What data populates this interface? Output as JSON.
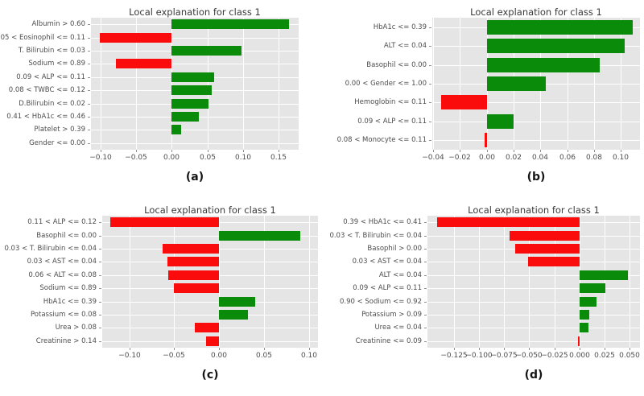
{
  "figure": {
    "background": "#ffffff",
    "panel_background": "#e5e5e5",
    "gridline_color": "#ffffff",
    "tick_color": "#8f8f8f",
    "positive_color": "#0a8c0a",
    "negative_color": "#fb0c0c"
  },
  "chart_data": [
    {
      "type": "bar",
      "orientation": "horizontal",
      "title": "Local explanation for class 1",
      "caption": "(a)",
      "legend": "none",
      "grid": true,
      "categories": [
        "Albumin > 0.60",
        "0.05 < Eosinophil <= 0.11",
        "T. Bilirubin <= 0.03",
        "Sodium <= 0.89",
        "0.09 < ALP <= 0.11",
        "0.08 < TWBC <= 0.12",
        "D.Bilirubin <= 0.02",
        "0.41 < HbA1c <= 0.46",
        "Platelet > 0.39",
        "Gender <= 0.00"
      ],
      "values": [
        0.165,
        -0.1,
        0.098,
        -0.078,
        0.06,
        0.057,
        0.052,
        0.038,
        0.013,
        0.0
      ],
      "xlim": [
        -0.1133,
        0.178
      ],
      "xticks": [
        -0.1,
        -0.05,
        0.0,
        0.05,
        0.1,
        0.15
      ],
      "xtick_labels": [
        "−0.10",
        "−0.05",
        "0.00",
        "0.05",
        "0.10",
        "0.15"
      ]
    },
    {
      "type": "bar",
      "orientation": "horizontal",
      "title": "Local explanation for class 1",
      "caption": "(b)",
      "legend": "none",
      "grid": true,
      "categories": [
        "HbA1c <= 0.39",
        "ALT <= 0.04",
        "Basophil <= 0.00",
        "0.00 < Gender <= 1.00",
        "Hemoglobin <= 0.11",
        "0.09 < ALP <= 0.11",
        "0.08 < Monocyte <= 0.11"
      ],
      "values": [
        0.109,
        0.103,
        0.084,
        0.044,
        -0.034,
        0.02,
        -0.002
      ],
      "xlim": [
        -0.0407,
        0.1143
      ],
      "xticks": [
        -0.04,
        -0.02,
        0.0,
        0.02,
        0.04,
        0.06,
        0.08,
        0.1
      ],
      "xtick_labels": [
        "−0.04",
        "−0.02",
        "0.00",
        "0.02",
        "0.04",
        "0.06",
        "0.08",
        "0.10"
      ]
    },
    {
      "type": "bar",
      "orientation": "horizontal",
      "title": "Local explanation for class 1",
      "caption": "(c)",
      "legend": "none",
      "grid": true,
      "categories": [
        "0.11 < ALP <= 0.12",
        "Basophil <= 0.00",
        "0.03 < T. Bilirubin <= 0.04",
        "0.03 < AST <= 0.04",
        "0.06 < ALT <= 0.08",
        "Sodium <= 0.89",
        "HbA1c <= 0.39",
        "Potassium <= 0.08",
        "Urea > 0.08",
        "Creatinine > 0.14"
      ],
      "values": [
        -0.121,
        0.09,
        -0.063,
        -0.057,
        -0.056,
        -0.05,
        0.04,
        0.032,
        -0.027,
        -0.014
      ],
      "xlim": [
        -0.13,
        0.11
      ],
      "xticks": [
        -0.1,
        -0.05,
        0.0,
        0.05,
        0.1
      ],
      "xtick_labels": [
        "−0.10",
        "−0.05",
        "0.00",
        "0.05",
        "0.10"
      ]
    },
    {
      "type": "bar",
      "orientation": "horizontal",
      "title": "Local explanation for class 1",
      "caption": "(d)",
      "legend": "none",
      "grid": true,
      "categories": [
        "0.39 < HbA1c <= 0.41",
        "0.03 < T. Bilirubin <= 0.04",
        "Basophil > 0.00",
        "0.03 < AST <= 0.04",
        "ALT <= 0.04",
        "0.09 < ALP <= 0.11",
        "0.90 < Sodium <= 0.92",
        "Potassium > 0.09",
        "Urea <= 0.04",
        "Creatinine <= 0.09"
      ],
      "values": [
        -0.142,
        -0.07,
        -0.064,
        -0.051,
        0.048,
        0.026,
        0.017,
        0.01,
        0.009,
        -0.002
      ],
      "xlim": [
        -0.1512,
        0.0603
      ],
      "xticks": [
        -0.125,
        -0.1,
        -0.075,
        -0.05,
        -0.025,
        0.0,
        0.025,
        0.05
      ],
      "xtick_labels": [
        "−0.125",
        "−0.100",
        "−0.075",
        "−0.050",
        "−0.025",
        "0.000",
        "0.025",
        "0.050"
      ]
    }
  ]
}
